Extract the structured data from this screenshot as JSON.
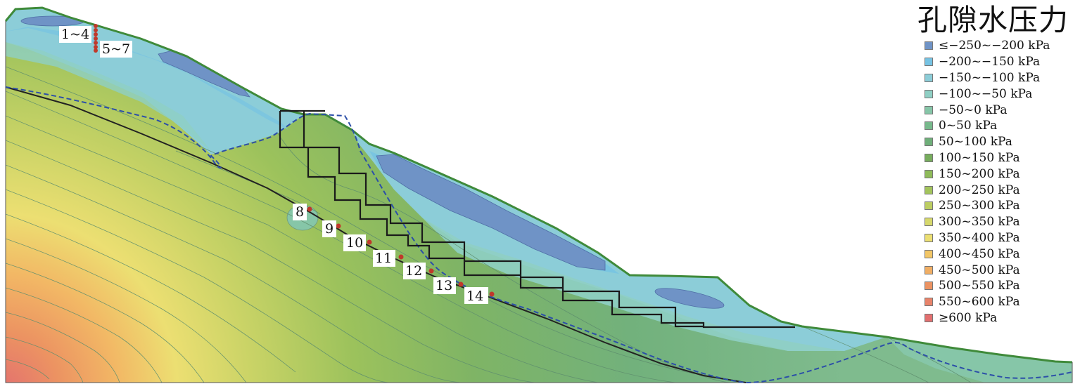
{
  "legend": {
    "title": "孔隙水压力",
    "items": [
      {
        "label": "≤−250~−200 kPa",
        "color": "#6f93c6"
      },
      {
        "label": "−200~−150 kPa",
        "color": "#76c3e3"
      },
      {
        "label": "−150~−100 kPa",
        "color": "#8ccdd8"
      },
      {
        "label": "−100~−50 kPa",
        "color": "#8fcfc4"
      },
      {
        "label": "−50~0 kPa",
        "color": "#86c6a8"
      },
      {
        "label": "0~50 kPa",
        "color": "#77b98c"
      },
      {
        "label": "50~100 kPa",
        "color": "#6faf7a"
      },
      {
        "label": "100~150 kPa",
        "color": "#77ad5d"
      },
      {
        "label": "150~200 kPa",
        "color": "#8fbb5a"
      },
      {
        "label": "200~250 kPa",
        "color": "#a3c45c"
      },
      {
        "label": "250~300 kPa",
        "color": "#bccd62"
      },
      {
        "label": "300~350 kPa",
        "color": "#d6d86c"
      },
      {
        "label": "350~400 kPa",
        "color": "#ecdf72"
      },
      {
        "label": "400~450 kPa",
        "color": "#f2c666"
      },
      {
        "label": "450~500 kPa",
        "color": "#f0ae64"
      },
      {
        "label": "500~550 kPa",
        "color": "#ec9362"
      },
      {
        "label": "550~600 kPa",
        "color": "#e8836a"
      },
      {
        "label": "≥600 kPa",
        "color": "#e36f6f"
      }
    ]
  },
  "monitoring_points": {
    "labels": [
      "1~4",
      "5~7",
      "8",
      "9",
      "10",
      "11",
      "12",
      "13",
      "14"
    ]
  }
}
